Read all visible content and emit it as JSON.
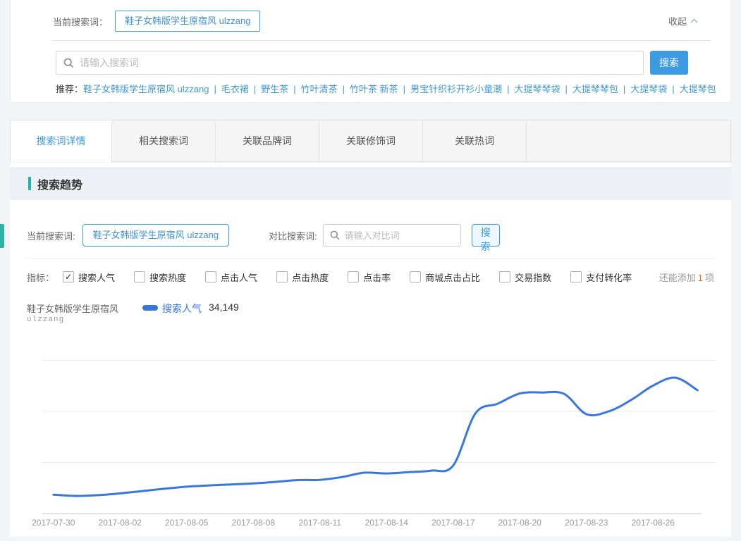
{
  "top_panel": {
    "current_label": "当前搜索词：",
    "current_term": "鞋子女韩版学生原宿风 ulzzang",
    "collapse_label": "收起",
    "search_placeholder": "请输入搜索词",
    "search_button": "搜索",
    "recommend_label": "推荐：",
    "recommend_links": [
      "鞋子女韩版学生原宿风 ulzzang",
      "毛衣裙",
      "野生茶",
      "竹叶清茶",
      "竹叶茶 新茶",
      "男宝针织衫开衫小童潮",
      "大提琴琴袋",
      "大提琴琴包",
      "大提琴袋",
      "大提琴包"
    ]
  },
  "tabs": {
    "active_tab": "搜索词详情",
    "items": [
      {
        "label": "搜索词详情",
        "active": true
      },
      {
        "label": "相关搜索词",
        "active": false
      },
      {
        "label": "关联品牌词",
        "active": false
      },
      {
        "label": "关联修饰词",
        "active": false
      },
      {
        "label": "关联热词",
        "active": false
      }
    ]
  },
  "section": {
    "title": "搜索趋势"
  },
  "compare": {
    "current_label": "当前搜索词:",
    "current_term": "鞋子女韩版学生原宿风 ulzzang",
    "compare_label": "对比搜索词:",
    "compare_placeholder": "请输入对比词",
    "search_button": "搜索"
  },
  "metrics": {
    "label": "指标：",
    "items": [
      {
        "label": "搜索人气",
        "checked": true
      },
      {
        "label": "搜索热度",
        "checked": false
      },
      {
        "label": "点击人气",
        "checked": false
      },
      {
        "label": "点击热度",
        "checked": false
      },
      {
        "label": "点击率",
        "checked": false
      },
      {
        "label": "商城点击占比",
        "checked": false
      },
      {
        "label": "交易指数",
        "checked": false
      },
      {
        "label": "支付转化率",
        "checked": false
      }
    ],
    "add_prefix": "还能添加",
    "add_count": "1",
    "add_suffix": "项"
  },
  "legend": {
    "term_line1": "鞋子女韩版学生原宿风",
    "term_line2": "ulzzang",
    "metric": "搜索人气",
    "value": "34,149"
  },
  "chart_data": {
    "type": "line",
    "title": "搜索趋势",
    "x": [
      "2017-07-30",
      "2017-07-31",
      "2017-08-01",
      "2017-08-02",
      "2017-08-03",
      "2017-08-04",
      "2017-08-05",
      "2017-08-06",
      "2017-08-07",
      "2017-08-08",
      "2017-08-09",
      "2017-08-10",
      "2017-08-11",
      "2017-08-12",
      "2017-08-13",
      "2017-08-14",
      "2017-08-15",
      "2017-08-16",
      "2017-08-17",
      "2017-08-18",
      "2017-08-19",
      "2017-08-20",
      "2017-08-21",
      "2017-08-22",
      "2017-08-23",
      "2017-08-24",
      "2017-08-25",
      "2017-08-26",
      "2017-08-27",
      "2017-08-28"
    ],
    "x_tick_labels": [
      "2017-07-30",
      "2017-08-02",
      "2017-08-05",
      "2017-08-08",
      "2017-08-11",
      "2017-08-14",
      "2017-08-17",
      "2017-08-20",
      "2017-08-23",
      "2017-08-26"
    ],
    "series": [
      {
        "name": "搜索人气",
        "color": "#3677e0",
        "values": [
          13700,
          13450,
          13600,
          13950,
          14400,
          14850,
          15250,
          15500,
          15700,
          15900,
          16200,
          16550,
          16600,
          17150,
          18000,
          17850,
          18100,
          18400,
          19400,
          29600,
          31500,
          33500,
          33700,
          33400,
          29450,
          30000,
          32200,
          35050,
          36600,
          34149
        ]
      }
    ],
    "latest_value": 34149,
    "ylim": [
      10000,
      40000
    ],
    "grid_step": 10000,
    "grid_on": true,
    "y_axis_labels_visible": false,
    "smooth": true,
    "legend_position": "top-left"
  },
  "colors": {
    "ui_blue": "#3d9be2",
    "link_blue": "#3e97d9",
    "line_blue": "#3677e0",
    "teal_accent": "#26b3a4",
    "orange_count": "#ff6a00",
    "section_strip_bg": "#edf1f5",
    "tabbar_bg": "#f5f5f6"
  }
}
